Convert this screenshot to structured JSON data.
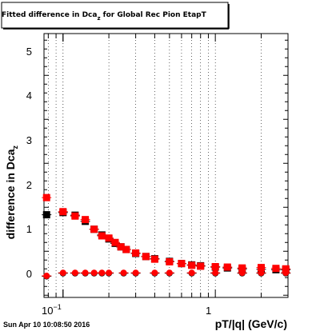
{
  "title_prefix": "Fitted difference in Dca",
  "title_sub": "z",
  "title_suffix": " for Global Rec Pion EtapT",
  "ylabel_main": "difference in Dca",
  "ylabel_sub": "z",
  "xlabel": "pT/|q| (GeV/c)",
  "timestamp": "Sun Apr 10 10:08:50 2016",
  "x_tick_labels": [
    {
      "base": "10",
      "exp": "−1",
      "value": 0.1
    },
    {
      "base": "1",
      "exp": "",
      "value": 1
    }
  ],
  "y_tick_labels": [
    "0",
    "1",
    "2",
    "3",
    "4",
    "5"
  ],
  "colors": {
    "series_black": "#000000",
    "series_red": "#ff0000",
    "grid": "#000000"
  },
  "chart_data": {
    "type": "scatter",
    "title": "Fitted difference in Dca_z for Global Rec Pion EtapT",
    "xlabel": "pT/|q| (GeV/c)",
    "ylabel": "difference in Dca_z",
    "x_scale": "log",
    "xlim": [
      0.075,
      3.0
    ],
    "ylim": [
      -0.55,
      5.45
    ],
    "grid": true,
    "series": [
      {
        "color": "#000000",
        "marker": "square",
        "x": [
          0.078,
          0.1,
          0.12,
          0.14,
          0.16,
          0.18,
          0.2,
          0.22,
          0.24,
          0.26,
          0.3,
          0.35,
          0.4,
          0.5,
          0.6,
          0.7,
          0.8,
          1.0,
          1.2,
          1.5,
          2.0,
          2.5,
          2.9
        ],
        "y": [
          1.33,
          1.38,
          1.32,
          1.18,
          1.0,
          0.87,
          0.78,
          0.68,
          0.6,
          0.54,
          0.45,
          0.38,
          0.33,
          0.27,
          0.22,
          0.19,
          0.17,
          0.14,
          0.12,
          0.1,
          0.09,
          0.08,
          0.08
        ]
      },
      {
        "color": "#ff0000",
        "marker": "square",
        "x": [
          0.078,
          0.1,
          0.12,
          0.14,
          0.16,
          0.18,
          0.2,
          0.22,
          0.24,
          0.26,
          0.3,
          0.35,
          0.4,
          0.5,
          0.6,
          0.7,
          0.8,
          1.0,
          1.2,
          1.5,
          2.0,
          2.5,
          2.9
        ],
        "y": [
          1.72,
          1.4,
          1.3,
          1.22,
          1.0,
          0.85,
          0.8,
          0.7,
          0.6,
          0.54,
          0.46,
          0.38,
          0.32,
          0.26,
          0.22,
          0.18,
          0.16,
          0.15,
          0.14,
          0.12,
          0.13,
          0.11,
          0.1
        ]
      },
      {
        "color": "#000000",
        "marker": "circle",
        "x": [
          0.078,
          0.1,
          0.12,
          0.14,
          0.16,
          0.18,
          0.2,
          0.25,
          0.3,
          0.4,
          0.5,
          0.7,
          1.0,
          1.5,
          2.0,
          2.9
        ],
        "y": [
          -0.07,
          0.0,
          0.0,
          0.0,
          0.0,
          0.0,
          0.0,
          0.0,
          0.0,
          0.0,
          0.0,
          0.0,
          0.0,
          0.0,
          0.0,
          0.0
        ]
      },
      {
        "color": "#ff0000",
        "marker": "circle",
        "x": [
          0.078,
          0.1,
          0.12,
          0.14,
          0.16,
          0.18,
          0.2,
          0.25,
          0.3,
          0.4,
          0.5,
          0.7,
          1.0,
          1.5,
          2.0,
          2.9
        ],
        "y": [
          -0.06,
          0.01,
          0.01,
          0.01,
          0.01,
          0.01,
          0.01,
          0.01,
          0.01,
          0.01,
          0.01,
          0.01,
          0.01,
          0.01,
          0.01,
          0.01
        ]
      }
    ]
  }
}
